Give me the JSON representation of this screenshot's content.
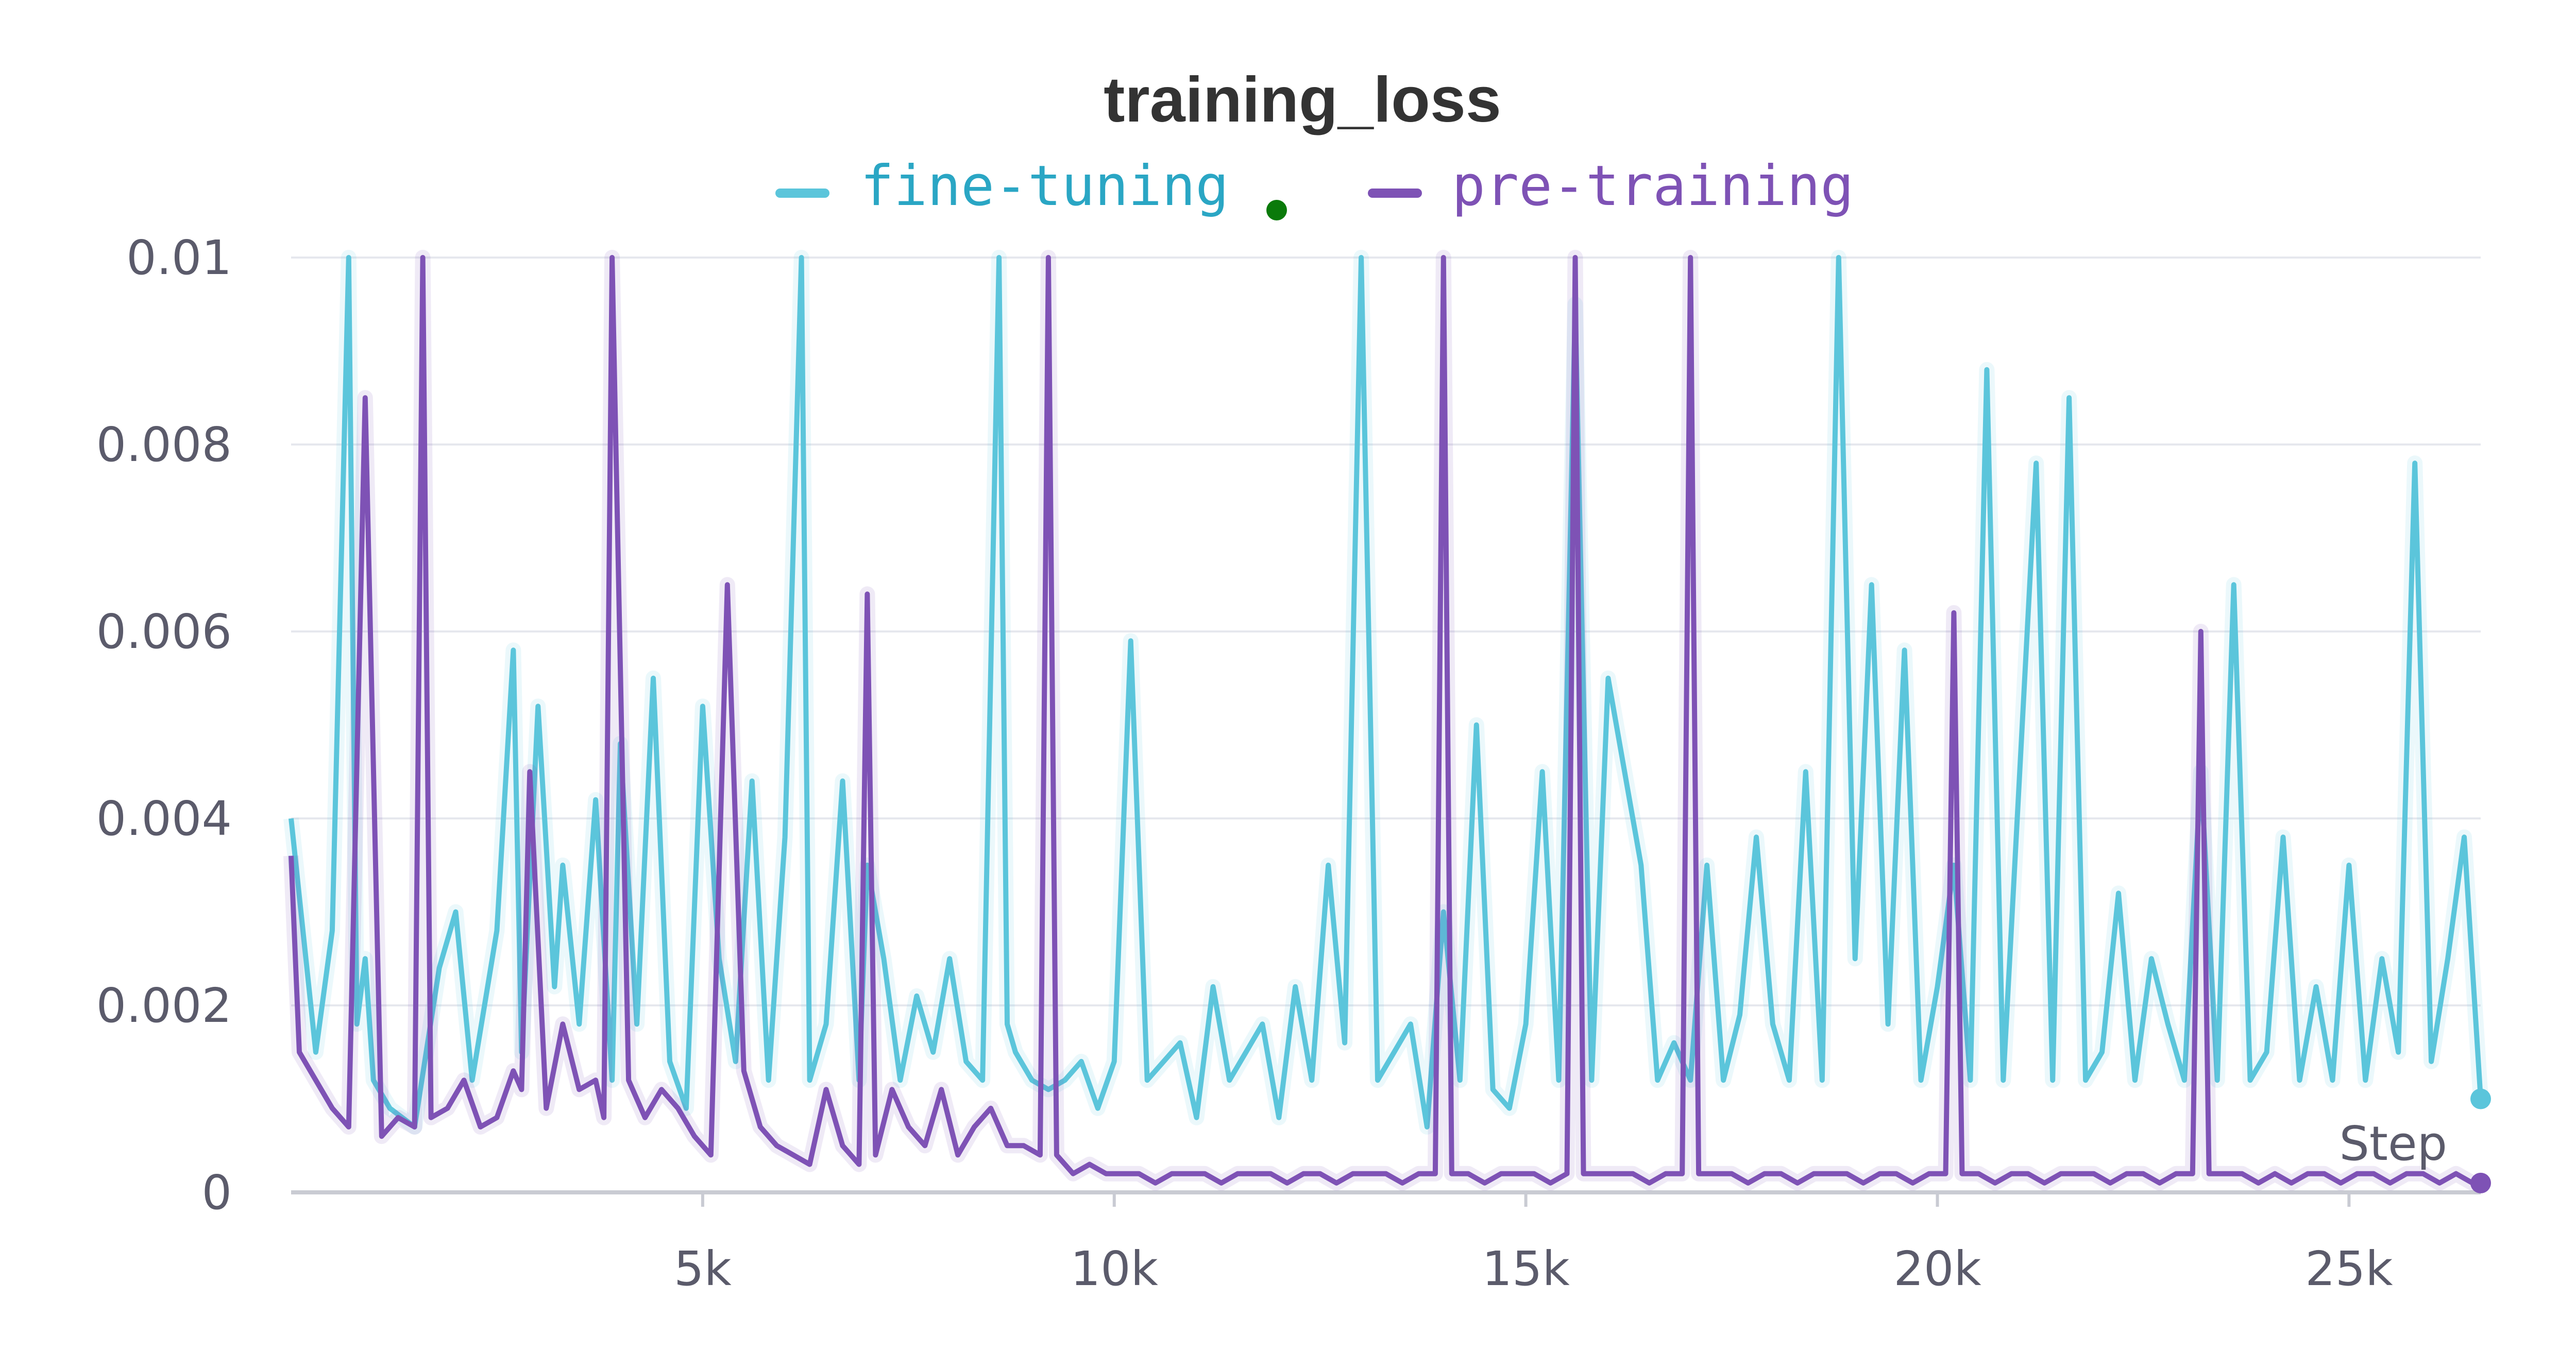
{
  "chart_data": {
    "type": "line",
    "title": "training_loss",
    "xlabel": "Step",
    "ylabel": "",
    "xlim": [
      0,
      26600
    ],
    "ylim": [
      0,
      0.01
    ],
    "x_ticks": [
      5000,
      10000,
      15000,
      20000,
      25000
    ],
    "x_tick_labels": [
      "5k",
      "10k",
      "15k",
      "20k",
      "25k"
    ],
    "y_ticks": [
      0,
      0.002,
      0.004,
      0.006,
      0.008,
      0.01
    ],
    "y_tick_labels": [
      "0",
      "0.002",
      "0.004",
      "0.006",
      "0.008",
      "0.01"
    ],
    "grid": true,
    "legend_position": "top-center",
    "series": [
      {
        "name": "fine-tuning",
        "color": "#5bc5db",
        "x": [
          0,
          300,
          500,
          700,
          800,
          900,
          1000,
          1200,
          1500,
          1800,
          2000,
          2200,
          2500,
          2700,
          2800,
          3000,
          3200,
          3300,
          3500,
          3700,
          3900,
          4000,
          4200,
          4400,
          4600,
          4800,
          5000,
          5200,
          5400,
          5600,
          5800,
          6000,
          6200,
          6300,
          6500,
          6700,
          6900,
          7000,
          7200,
          7400,
          7600,
          7800,
          8000,
          8200,
          8400,
          8600,
          8700,
          8800,
          9000,
          9200,
          9400,
          9600,
          9800,
          10000,
          10200,
          10400,
          10600,
          10800,
          11000,
          11200,
          11400,
          11600,
          11800,
          12000,
          12200,
          12400,
          12600,
          12800,
          13000,
          13200,
          13400,
          13600,
          13800,
          14000,
          14200,
          14400,
          14600,
          14800,
          15000,
          15200,
          15400,
          15600,
          15800,
          16000,
          16200,
          16400,
          16600,
          16800,
          17000,
          17200,
          17400,
          17600,
          17800,
          18000,
          18200,
          18400,
          18600,
          18800,
          19000,
          19200,
          19400,
          19600,
          19800,
          20000,
          20200,
          20400,
          20600,
          20800,
          21000,
          21200,
          21400,
          21600,
          21800,
          22000,
          22200,
          22400,
          22600,
          22800,
          23000,
          23200,
          23400,
          23600,
          23800,
          24000,
          24200,
          24400,
          24600,
          24800,
          25000,
          25200,
          25400,
          25600,
          25800,
          26000,
          26200,
          26400,
          26600
        ],
        "y": [
          0.004,
          0.0015,
          0.0028,
          0.01,
          0.0018,
          0.0025,
          0.0012,
          0.0009,
          0.0007,
          0.0024,
          0.003,
          0.0012,
          0.0028,
          0.0058,
          0.0015,
          0.0052,
          0.0022,
          0.0035,
          0.0018,
          0.0042,
          0.0012,
          0.0048,
          0.0018,
          0.0055,
          0.0014,
          0.0009,
          0.0052,
          0.0025,
          0.0014,
          0.0044,
          0.0012,
          0.0038,
          0.01,
          0.0012,
          0.0018,
          0.0044,
          0.0012,
          0.0035,
          0.0025,
          0.0012,
          0.0021,
          0.0015,
          0.0025,
          0.0014,
          0.0012,
          0.01,
          0.0018,
          0.0015,
          0.0012,
          0.0011,
          0.0012,
          0.0014,
          0.0009,
          0.0014,
          0.0059,
          0.0012,
          0.0014,
          0.0016,
          0.0008,
          0.0022,
          0.0012,
          0.0015,
          0.0018,
          0.0008,
          0.0022,
          0.0012,
          0.0035,
          0.0016,
          0.01,
          0.0012,
          0.0015,
          0.0018,
          0.0007,
          0.003,
          0.0012,
          0.005,
          0.0011,
          0.0009,
          0.0018,
          0.0045,
          0.0012,
          0.0095,
          0.0012,
          0.0055,
          0.0045,
          0.0035,
          0.0012,
          0.0016,
          0.0012,
          0.0035,
          0.0012,
          0.0019,
          0.0038,
          0.0018,
          0.0012,
          0.0045,
          0.0012,
          0.01,
          0.0025,
          0.0065,
          0.0018,
          0.0058,
          0.0012,
          0.0022,
          0.0035,
          0.0012,
          0.0088,
          0.0012,
          0.0045,
          0.0078,
          0.0012,
          0.0085,
          0.0012,
          0.0015,
          0.0032,
          0.0012,
          0.0025,
          0.0018,
          0.0012,
          0.0045,
          0.0012,
          0.0065,
          0.0012,
          0.0015,
          0.0038,
          0.0012,
          0.0022,
          0.0012,
          0.0035,
          0.0012,
          0.0025,
          0.0015,
          0.0078,
          0.0014,
          0.0025,
          0.0038,
          0.001
        ]
      },
      {
        "name": "pre-training",
        "color": "#7e52b5",
        "x": [
          0,
          100,
          300,
          500,
          700,
          900,
          1100,
          1300,
          1500,
          1600,
          1700,
          1900,
          2100,
          2300,
          2500,
          2700,
          2800,
          2900,
          3100,
          3300,
          3500,
          3700,
          3800,
          3900,
          4100,
          4300,
          4500,
          4700,
          4900,
          5100,
          5300,
          5500,
          5700,
          5900,
          6100,
          6300,
          6500,
          6700,
          6900,
          7000,
          7100,
          7300,
          7500,
          7700,
          7900,
          8100,
          8300,
          8500,
          8700,
          8900,
          9100,
          9200,
          9300,
          9500,
          9700,
          9900,
          10100,
          10300,
          10500,
          10700,
          10900,
          11100,
          11300,
          11500,
          11700,
          11900,
          12100,
          12300,
          12500,
          12700,
          12900,
          13100,
          13300,
          13500,
          13700,
          13900,
          14000,
          14100,
          14300,
          14500,
          14700,
          14900,
          15100,
          15300,
          15500,
          15600,
          15700,
          15900,
          16100,
          16300,
          16500,
          16700,
          16900,
          17000,
          17100,
          17300,
          17500,
          17700,
          17900,
          18100,
          18300,
          18500,
          18700,
          18900,
          19100,
          19300,
          19500,
          19700,
          19900,
          20100,
          20200,
          20300,
          20500,
          20700,
          20900,
          21100,
          21300,
          21500,
          21700,
          21900,
          22100,
          22300,
          22500,
          22700,
          22900,
          23100,
          23200,
          23300,
          23500,
          23700,
          23900,
          24100,
          24300,
          24500,
          24700,
          24900,
          25100,
          25300,
          25500,
          25700,
          25900,
          26100,
          26300,
          26500,
          26600
        ],
        "y": [
          0.0036,
          0.0015,
          0.0012,
          0.0009,
          0.0007,
          0.0085,
          0.0006,
          0.0008,
          0.0007,
          0.01,
          0.0008,
          0.0009,
          0.0012,
          0.0007,
          0.0008,
          0.0013,
          0.0011,
          0.0045,
          0.0009,
          0.0018,
          0.0011,
          0.0012,
          0.0008,
          0.01,
          0.0012,
          0.0008,
          0.0011,
          0.0009,
          0.0006,
          0.0004,
          0.0065,
          0.0013,
          0.0007,
          0.0005,
          0.0004,
          0.0003,
          0.0011,
          0.0005,
          0.0003,
          0.0064,
          0.0004,
          0.0011,
          0.0007,
          0.0005,
          0.0011,
          0.0004,
          0.0007,
          0.0009,
          0.0005,
          0.0005,
          0.0004,
          0.01,
          0.0004,
          0.0002,
          0.0003,
          0.0002,
          0.0002,
          0.0002,
          0.0001,
          0.0002,
          0.0002,
          0.0002,
          0.0001,
          0.0002,
          0.0002,
          0.0002,
          0.0001,
          0.0002,
          0.0002,
          0.0001,
          0.0002,
          0.0002,
          0.0002,
          0.0001,
          0.0002,
          0.0002,
          0.01,
          0.0002,
          0.0002,
          0.0001,
          0.0002,
          0.0002,
          0.0002,
          0.0001,
          0.0002,
          0.01,
          0.0002,
          0.0002,
          0.0002,
          0.0002,
          0.0001,
          0.0002,
          0.0002,
          0.01,
          0.0002,
          0.0002,
          0.0002,
          0.0001,
          0.0002,
          0.0002,
          0.0001,
          0.0002,
          0.0002,
          0.0002,
          0.0001,
          0.0002,
          0.0002,
          0.0001,
          0.0002,
          0.0002,
          0.0062,
          0.0002,
          0.0002,
          0.0001,
          0.0002,
          0.0002,
          0.0001,
          0.0002,
          0.0002,
          0.0002,
          0.0001,
          0.0002,
          0.0002,
          0.0001,
          0.0002,
          0.0002,
          0.006,
          0.0002,
          0.0002,
          0.0002,
          0.0001,
          0.0002,
          0.0001,
          0.0002,
          0.0002,
          0.0001,
          0.0002,
          0.0002,
          0.0001,
          0.0002,
          0.0002,
          0.0001,
          0.0002,
          0.0001,
          0.0001
        ]
      }
    ]
  },
  "legend": {
    "finetune_label": "fine-tuning",
    "pretrain_label": "pre-training",
    "finetune_color": "#5bc5db",
    "pretrain_color": "#7e52b5",
    "dot_color": "#0a7a0a"
  }
}
